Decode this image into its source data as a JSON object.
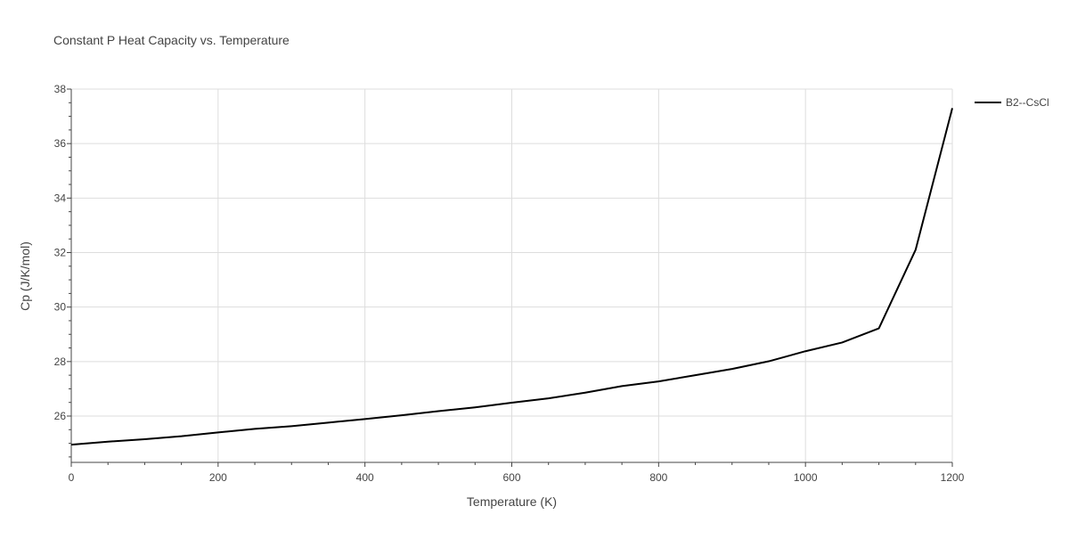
{
  "chart_data": {
    "type": "line",
    "title": "Constant P Heat Capacity vs. Temperature",
    "xlabel": "Temperature (K)",
    "ylabel": "Cp (J/K/mol)",
    "xlim": [
      0,
      1200
    ],
    "ylim": [
      24.3,
      38
    ],
    "x_ticks": [
      0,
      200,
      400,
      600,
      800,
      1000,
      1200
    ],
    "y_ticks": [
      26,
      28,
      30,
      32,
      34,
      36,
      38
    ],
    "grid": true,
    "legend_position": "top-right",
    "series": [
      {
        "name": "B2--CsCl",
        "color": "#000000",
        "x": [
          0,
          50,
          100,
          150,
          200,
          250,
          300,
          350,
          400,
          450,
          500,
          550,
          600,
          650,
          700,
          750,
          800,
          850,
          900,
          950,
          1000,
          1050,
          1100,
          1150,
          1200
        ],
        "y": [
          24.95,
          25.06,
          25.15,
          25.26,
          25.4,
          25.53,
          25.63,
          25.76,
          25.89,
          26.03,
          26.18,
          26.32,
          26.49,
          26.65,
          26.86,
          27.1,
          27.27,
          27.5,
          27.73,
          28.01,
          28.38,
          28.7,
          29.22,
          32.1,
          37.3
        ]
      }
    ]
  }
}
